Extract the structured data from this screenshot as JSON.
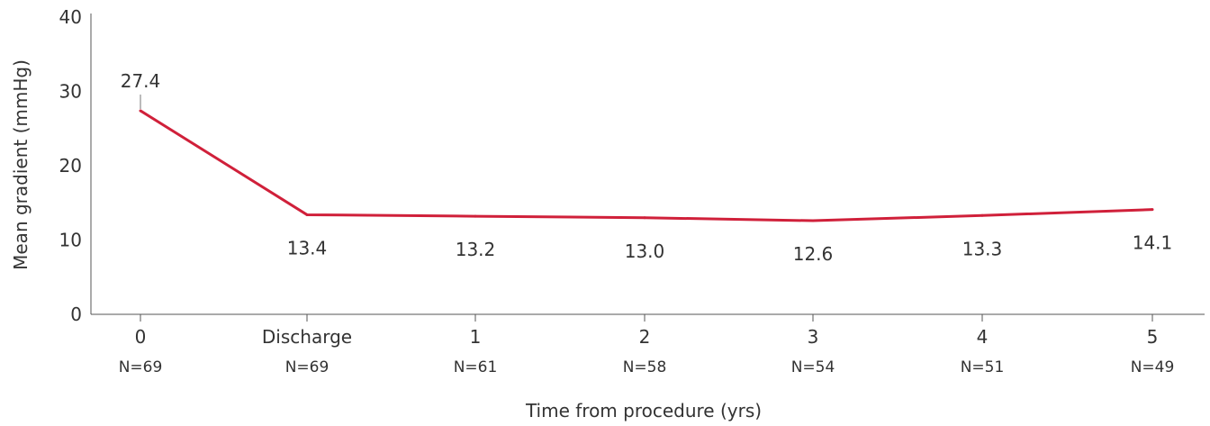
{
  "chart_data": {
    "type": "line",
    "categories": [
      "0",
      "Discharge",
      "1",
      "2",
      "3",
      "4",
      "5"
    ],
    "sample_sizes": [
      "N=69",
      "N=69",
      "N=61",
      "N=58",
      "N=54",
      "N=51",
      "N=49"
    ],
    "values": [
      27.4,
      13.4,
      13.2,
      13.0,
      12.6,
      13.3,
      14.1
    ],
    "data_labels": [
      "27.4",
      "13.4",
      "13.2",
      "13.0",
      "12.6",
      "13.3",
      "14.1"
    ],
    "xlabel": "Time from procedure (yrs)",
    "ylabel": "Mean gradient (mmHg)",
    "ylim": [
      0,
      40
    ],
    "yticks": [
      "0",
      "10",
      "20",
      "30",
      "40"
    ],
    "grid": false,
    "line_color": "#d0203a"
  }
}
